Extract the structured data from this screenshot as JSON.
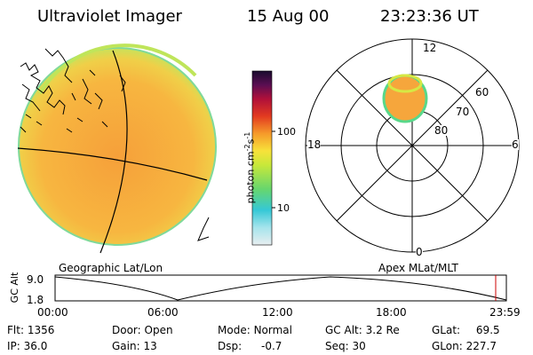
{
  "header": {
    "title": "Ultraviolet Imager",
    "date": "15 Aug 00",
    "time": "23:23:36 UT"
  },
  "colors": {
    "earth_fill": "#f5b63c",
    "colorbar_top": "#1a0b2e",
    "colorbar_bottom": "#e8eef0",
    "marker_red": "#cc0000"
  },
  "colorbar": {
    "label": "photon cm^-2 s^-1",
    "label_base": "photon cm",
    "label_exp1": "-2",
    "label_mid": "s",
    "label_exp2": "-1",
    "ticks": [
      "100",
      "10"
    ]
  },
  "geo_panel": {
    "label": "Geographic Lat/Lon"
  },
  "polar_panel": {
    "label": "Apex MLat/MLT",
    "mlt_labels": {
      "top": "12",
      "left": "18",
      "right": "6",
      "bottom": "0"
    },
    "lat_labels": [
      "60",
      "70",
      "80"
    ]
  },
  "altitude_plot": {
    "ylabel": "GC Alt",
    "yticks": [
      "9.0",
      "1.8"
    ],
    "xticks": [
      "00:00",
      "06:00",
      "12:00",
      "18:00",
      "23:59"
    ]
  },
  "status": [
    {
      "label": "Flt:",
      "value": "1356"
    },
    {
      "label": "Door:",
      "value": "Open"
    },
    {
      "label": "Mode:",
      "value": "Normal"
    },
    {
      "label": "GC Alt:",
      "value": "3.2 Re"
    },
    {
      "label": "GLat:",
      "value": "69.5"
    },
    {
      "label": "IP:",
      "value": "36.0"
    },
    {
      "label": "Gain:",
      "value": "13"
    },
    {
      "label": "Dsp:",
      "value": "-0.7"
    },
    {
      "label": "Seq:",
      "value": "30"
    },
    {
      "label": "GLon:",
      "value": "227.7"
    }
  ]
}
